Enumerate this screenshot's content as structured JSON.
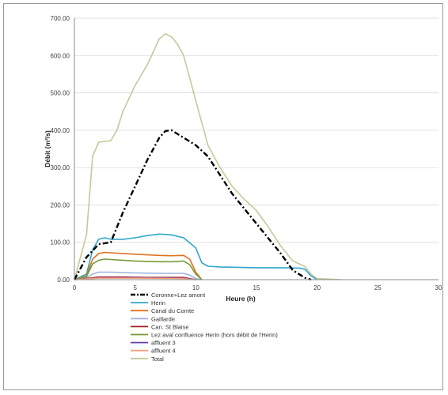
{
  "chart_data": {
    "type": "line",
    "xlabel": "Heure (h)",
    "ylabel": "Débit (m³/s)",
    "xlim": [
      0,
      30
    ],
    "ylim": [
      0,
      700
    ],
    "x_ticks": [
      "0",
      "5",
      "10",
      "15",
      "20",
      "25",
      "30"
    ],
    "y_ticks": [
      "0.00",
      "100.00",
      "200.00",
      "300.00",
      "400.00",
      "500.00",
      "600.00",
      "700.00"
    ],
    "grid": "horizontal",
    "legend_position": "bottom",
    "series": [
      {
        "name": "Coronne+Lez amont",
        "color": "#000000",
        "dash": "dashdot",
        "points": [
          [
            0,
            0
          ],
          [
            1,
            60
          ],
          [
            2,
            95
          ],
          [
            3,
            100
          ],
          [
            4,
            180
          ],
          [
            5,
            250
          ],
          [
            6,
            320
          ],
          [
            7,
            380
          ],
          [
            7.5,
            398
          ],
          [
            8,
            400
          ],
          [
            8.5,
            390
          ],
          [
            9,
            380
          ],
          [
            10,
            360
          ],
          [
            11,
            330
          ],
          [
            12,
            280
          ],
          [
            13,
            230
          ],
          [
            14,
            190
          ],
          [
            15,
            150
          ],
          [
            16,
            110
          ],
          [
            17,
            70
          ],
          [
            18,
            25
          ],
          [
            19,
            5
          ],
          [
            19.5,
            0
          ]
        ]
      },
      {
        "name": "Herin",
        "color": "#31a7c9",
        "points": [
          [
            0,
            0
          ],
          [
            1,
            15
          ],
          [
            1.5,
            80
          ],
          [
            2,
            108
          ],
          [
            2.5,
            112
          ],
          [
            3,
            108
          ],
          [
            4,
            108
          ],
          [
            5,
            112
          ],
          [
            6,
            118
          ],
          [
            7,
            122
          ],
          [
            8,
            120
          ],
          [
            9,
            112
          ],
          [
            10,
            85
          ],
          [
            10.5,
            45
          ],
          [
            11,
            36
          ],
          [
            12,
            34
          ],
          [
            15,
            32
          ],
          [
            17,
            32
          ],
          [
            18.5,
            31
          ],
          [
            19,
            28
          ],
          [
            19.5,
            10
          ],
          [
            20,
            0
          ]
        ]
      },
      {
        "name": "Canal du Comte",
        "color": "#e0701e",
        "points": [
          [
            0,
            0
          ],
          [
            1,
            10
          ],
          [
            1.5,
            55
          ],
          [
            2,
            70
          ],
          [
            2.5,
            73
          ],
          [
            3,
            72
          ],
          [
            5,
            68
          ],
          [
            7,
            65
          ],
          [
            8,
            64
          ],
          [
            9,
            65
          ],
          [
            9.5,
            55
          ],
          [
            10,
            20
          ],
          [
            10.5,
            0
          ]
        ]
      },
      {
        "name": "Gaillarde",
        "color": "#9fb3d9",
        "points": [
          [
            0,
            0
          ],
          [
            1,
            5
          ],
          [
            1.5,
            15
          ],
          [
            2,
            20
          ],
          [
            3,
            20
          ],
          [
            5,
            18
          ],
          [
            7,
            17
          ],
          [
            9,
            17
          ],
          [
            9.5,
            12
          ],
          [
            10,
            3
          ],
          [
            10.5,
            0
          ]
        ]
      },
      {
        "name": "Can. St Blaise",
        "color": "#a51d22",
        "points": [
          [
            0,
            0
          ],
          [
            1,
            3
          ],
          [
            2,
            7
          ],
          [
            4,
            7
          ],
          [
            6,
            6
          ],
          [
            8,
            6
          ],
          [
            9,
            6
          ],
          [
            9.5,
            3
          ],
          [
            10,
            0
          ]
        ]
      },
      {
        "name": "Lez aval confluence Herin (hors débit de l'Herin)",
        "color": "#7a9a38",
        "points": [
          [
            0,
            0
          ],
          [
            1,
            8
          ],
          [
            1.5,
            42
          ],
          [
            2,
            52
          ],
          [
            2.5,
            55
          ],
          [
            3,
            54
          ],
          [
            5,
            50
          ],
          [
            7,
            48
          ],
          [
            8,
            48
          ],
          [
            9,
            50
          ],
          [
            9.5,
            40
          ],
          [
            10,
            15
          ],
          [
            10.5,
            0
          ]
        ]
      },
      {
        "name": "affluent 3",
        "color": "#6b3fa0",
        "points": [
          [
            0,
            0
          ],
          [
            1,
            2
          ],
          [
            2,
            5
          ],
          [
            5,
            5
          ],
          [
            9,
            4
          ],
          [
            9.5,
            2
          ],
          [
            10,
            0
          ]
        ]
      },
      {
        "name": "affluent 4",
        "color": "#f2a07a",
        "points": [
          [
            0,
            0
          ],
          [
            1,
            2
          ],
          [
            2,
            4
          ],
          [
            5,
            4
          ],
          [
            9,
            3
          ],
          [
            9.5,
            1
          ],
          [
            10,
            0
          ]
        ]
      },
      {
        "name": "Total",
        "color": "#c5c99a",
        "points": [
          [
            0,
            0
          ],
          [
            1,
            120
          ],
          [
            1.5,
            330
          ],
          [
            2,
            368
          ],
          [
            2.5,
            370
          ],
          [
            3,
            372
          ],
          [
            3.5,
            400
          ],
          [
            4,
            450
          ],
          [
            5,
            520
          ],
          [
            6,
            575
          ],
          [
            6.5,
            610
          ],
          [
            7,
            645
          ],
          [
            7.5,
            658
          ],
          [
            8,
            650
          ],
          [
            8.5,
            630
          ],
          [
            9,
            600
          ],
          [
            10,
            480
          ],
          [
            11,
            360
          ],
          [
            12,
            300
          ],
          [
            13,
            250
          ],
          [
            14,
            215
          ],
          [
            15,
            185
          ],
          [
            16,
            140
          ],
          [
            17,
            90
          ],
          [
            18,
            50
          ],
          [
            19,
            35
          ],
          [
            19.5,
            15
          ],
          [
            20,
            3
          ],
          [
            22,
            0
          ]
        ]
      }
    ]
  }
}
